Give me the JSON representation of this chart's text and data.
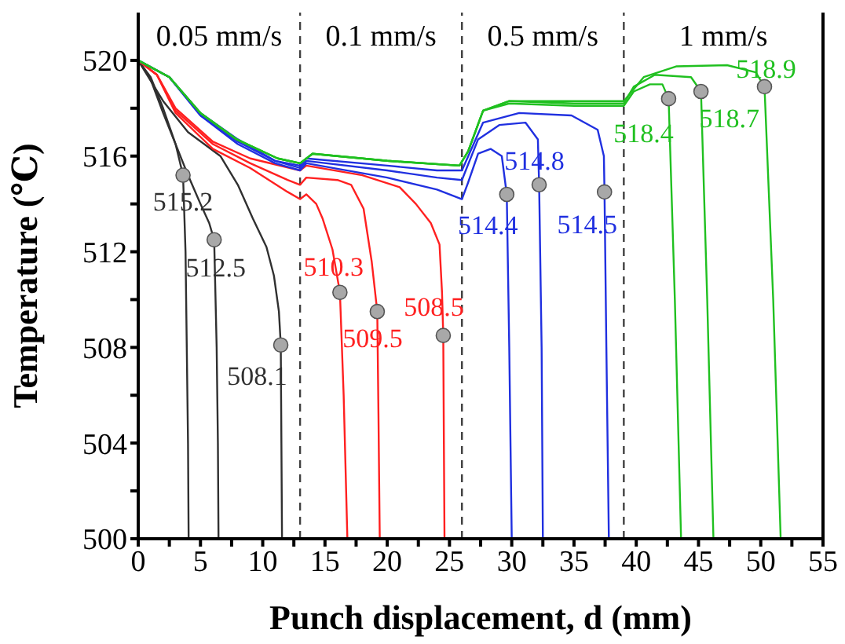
{
  "chart_data": {
    "type": "line",
    "xlabel": "Punch displacement, d (mm)",
    "ylabel": "Temperature (℃)",
    "xlim": [
      0,
      55
    ],
    "ylim": [
      500,
      522
    ],
    "xticks": [
      0,
      {
        "value": 2.5,
        "label": null
      },
      5,
      {
        "value": 7.5,
        "label": null
      },
      10,
      {
        "value": 12.5,
        "label": null
      },
      15,
      {
        "value": 17.5,
        "label": null
      },
      20,
      {
        "value": 22.5,
        "label": null
      },
      25,
      {
        "value": 27.5,
        "label": null
      },
      30,
      {
        "value": 32.5,
        "label": null
      },
      35,
      {
        "value": 37.5,
        "label": null
      },
      40,
      {
        "value": 42.5,
        "label": null
      },
      45,
      {
        "value": 47.5,
        "label": null
      },
      50,
      {
        "value": 52.5,
        "label": null
      },
      55
    ],
    "yticks": [
      500,
      {
        "value": 502,
        "label": null
      },
      504,
      {
        "value": 506,
        "label": null
      },
      508,
      {
        "value": 510,
        "label": null
      },
      512,
      {
        "value": 514,
        "label": null
      },
      516,
      {
        "value": 518,
        "label": null
      },
      520
    ],
    "grid": false,
    "legend": false,
    "annotations": [
      "0.05 mm/s",
      "0.1 mm/s",
      "0.5 mm/s",
      "1 mm/s"
    ],
    "ref_lines": [
      {
        "axis": "x",
        "value": 13,
        "color": "#404040",
        "line_style": "dashed"
      },
      {
        "axis": "x",
        "value": 26,
        "color": "#404040",
        "line_style": "dashed"
      },
      {
        "axis": "x",
        "value": 39,
        "color": "#404040",
        "line_style": "dashed"
      }
    ],
    "series": [
      {
        "color": "#303030",
        "x": [
          0,
          1,
          2,
          3,
          3.6,
          3.8,
          3.9,
          4.0,
          4.05
        ],
        "values": [
          520,
          519.3,
          518,
          516.5,
          515.2,
          512,
          508,
          504,
          500
        ],
        "value_labels": [
          null,
          null,
          null,
          null,
          "515.2",
          null,
          null,
          null,
          null
        ]
      },
      {
        "color": "#303030",
        "x": [
          0,
          1,
          2,
          3,
          4,
          5,
          5.7,
          6.1,
          6.3,
          6.4,
          6.45
        ],
        "values": [
          520,
          519.2,
          517.8,
          516.5,
          515.2,
          514,
          513.2,
          512.5,
          508,
          504,
          500
        ],
        "value_labels": [
          null,
          null,
          null,
          null,
          null,
          null,
          null,
          "512.5",
          null,
          null,
          null
        ]
      },
      {
        "color": "#303030",
        "x": [
          0,
          2,
          4,
          6.6,
          8,
          9.2,
          10.3,
          10.9,
          11.3,
          11.45,
          11.5,
          11.55
        ],
        "values": [
          520,
          518.3,
          517,
          516,
          514.8,
          513.4,
          512.2,
          511,
          509.5,
          508.1,
          504,
          500
        ],
        "value_labels": [
          null,
          null,
          null,
          null,
          null,
          null,
          null,
          null,
          null,
          "508.1",
          null,
          null
        ]
      },
      {
        "color": "#ff2020",
        "x": [
          0,
          1.5,
          3,
          6,
          9,
          12,
          13,
          13.5,
          14.3,
          14.8,
          15.6,
          16.2,
          16.5,
          16.8
        ],
        "values": [
          520,
          519.4,
          517.8,
          516.3,
          515.5,
          514.5,
          514.2,
          514.4,
          514,
          513.4,
          512.1,
          510.3,
          506,
          500
        ],
        "value_labels": [
          null,
          null,
          null,
          null,
          null,
          null,
          null,
          null,
          null,
          null,
          null,
          "510.3",
          null,
          null
        ]
      },
      {
        "color": "#ff2020",
        "x": [
          0,
          1.5,
          3,
          6,
          9,
          12,
          13,
          13.5,
          16,
          17.1,
          18.1,
          18.75,
          19.2,
          19.3,
          19.4
        ],
        "values": [
          520,
          519.4,
          517.9,
          516.5,
          515.7,
          515,
          514.8,
          515.1,
          515,
          514.8,
          513.8,
          511.6,
          509.5,
          505,
          500
        ],
        "value_labels": [
          null,
          null,
          null,
          null,
          null,
          null,
          null,
          null,
          null,
          null,
          null,
          null,
          "509.5",
          null,
          null
        ]
      },
      {
        "color": "#ff2020",
        "x": [
          0,
          1.5,
          3,
          6,
          9,
          13,
          13.5,
          18,
          21,
          22.3,
          23.5,
          24.2,
          24.4,
          24.5,
          24.55,
          24.6
        ],
        "values": [
          520,
          519.4,
          518,
          516.6,
          515.9,
          515.4,
          515.6,
          515.2,
          514.7,
          514,
          513.2,
          512.3,
          510.3,
          508.5,
          504,
          500
        ],
        "value_labels": [
          null,
          null,
          null,
          null,
          null,
          null,
          null,
          null,
          null,
          null,
          null,
          null,
          null,
          "508.5",
          null,
          null
        ]
      },
      {
        "color": "#2030e0",
        "x": [
          0,
          2.5,
          5,
          8,
          11,
          13,
          13.5,
          20,
          24,
          26,
          26.5,
          27.3,
          28.3,
          29.2,
          29.6,
          29.8,
          30
        ],
        "values": [
          520,
          519.3,
          517.7,
          516.5,
          515.7,
          515.4,
          515.7,
          515.1,
          514.6,
          514.2,
          514.9,
          516.1,
          516.3,
          516,
          514.4,
          508,
          500
        ],
        "value_labels": [
          null,
          null,
          null,
          null,
          null,
          null,
          null,
          null,
          null,
          null,
          null,
          null,
          null,
          null,
          "514.4",
          null,
          null
        ]
      },
      {
        "color": "#2030e0",
        "x": [
          0,
          2.5,
          5,
          8,
          11,
          13,
          13.5,
          20,
          24,
          26,
          27.3,
          29,
          31.1,
          32.1,
          32.2,
          32.4,
          32.5
        ],
        "values": [
          520,
          519.3,
          517.7,
          516.6,
          515.8,
          515.5,
          515.8,
          515.4,
          515.1,
          515,
          516.7,
          517.3,
          517.4,
          516.7,
          514.8,
          508,
          500
        ],
        "value_labels": [
          null,
          null,
          null,
          null,
          null,
          null,
          null,
          null,
          null,
          null,
          null,
          null,
          null,
          null,
          "514.8",
          null,
          null
        ]
      },
      {
        "color": "#2030e0",
        "x": [
          0,
          2.5,
          5,
          8,
          11,
          13,
          13.5,
          20,
          24,
          26,
          27.7,
          30.6,
          34.8,
          36.9,
          37.4,
          37.45,
          37.6,
          37.8
        ],
        "values": [
          520,
          519.3,
          517.8,
          516.7,
          515.8,
          515.6,
          515.9,
          515.6,
          515.4,
          515.4,
          517.4,
          517.8,
          517.7,
          517.1,
          516,
          514.5,
          508,
          500
        ],
        "value_labels": [
          null,
          null,
          null,
          null,
          null,
          null,
          null,
          null,
          null,
          null,
          null,
          null,
          null,
          null,
          null,
          "514.5",
          null,
          null
        ]
      },
      {
        "color": "#20c020",
        "x": [
          0,
          2.5,
          5,
          7.9,
          11.2,
          13,
          14,
          20,
          25.8,
          26.5,
          27.7,
          29.8,
          35,
          39,
          39.8,
          41.1,
          42.1,
          42.6,
          43.1,
          43.6
        ],
        "values": [
          520,
          519.3,
          517.8,
          516.7,
          515.9,
          515.7,
          516.1,
          515.8,
          515.6,
          516.2,
          517.9,
          518.2,
          518.1,
          518.1,
          518.7,
          519,
          519,
          518.4,
          510,
          500
        ],
        "value_labels": [
          null,
          null,
          null,
          null,
          null,
          null,
          null,
          null,
          null,
          null,
          null,
          null,
          null,
          null,
          null,
          null,
          null,
          "518.4",
          null,
          null
        ]
      },
      {
        "color": "#20c020",
        "x": [
          0,
          2.5,
          5,
          7.9,
          11.2,
          13,
          14,
          20,
          25.8,
          26.5,
          27.7,
          29.8,
          35,
          39,
          39.8,
          41.5,
          44.4,
          45.2,
          45.7,
          46.2
        ],
        "values": [
          520,
          519.3,
          517.8,
          516.7,
          515.9,
          515.7,
          516.1,
          515.8,
          515.6,
          516.2,
          517.9,
          518.3,
          518.2,
          518.2,
          518.9,
          519.4,
          519.3,
          518.7,
          510,
          500
        ],
        "value_labels": [
          null,
          null,
          null,
          null,
          null,
          null,
          null,
          null,
          null,
          null,
          null,
          null,
          null,
          null,
          null,
          null,
          null,
          "518.7",
          null,
          null
        ]
      },
      {
        "color": "#20c020",
        "x": [
          0,
          2.5,
          5,
          7.9,
          11.2,
          13,
          14,
          20,
          25.8,
          26.5,
          27.7,
          29.8,
          35,
          39,
          40.6,
          43.2,
          47.3,
          49.6,
          50.3,
          51,
          51.6
        ],
        "values": [
          520,
          519.3,
          517.8,
          516.7,
          515.9,
          515.7,
          516.1,
          515.8,
          515.6,
          516.2,
          517.9,
          518.3,
          518.3,
          518.3,
          519.3,
          519.75,
          519.8,
          519.5,
          518.9,
          510,
          500
        ],
        "value_labels": [
          null,
          null,
          null,
          null,
          null,
          null,
          null,
          null,
          null,
          null,
          null,
          null,
          null,
          null,
          null,
          null,
          null,
          null,
          "518.9",
          null,
          null
        ]
      },
      {
        "type": "scatter",
        "color": "#a8a8a8",
        "marker": "circle",
        "x": [
          3.6,
          6.1,
          11.45,
          16.2,
          19.2,
          24.5,
          29.6,
          32.2,
          37.45,
          42.6,
          45.2,
          50.3
        ],
        "values": [
          515.2,
          512.5,
          508.1,
          510.3,
          509.5,
          508.5,
          514.4,
          514.8,
          514.5,
          518.4,
          518.7,
          518.9
        ]
      }
    ]
  }
}
